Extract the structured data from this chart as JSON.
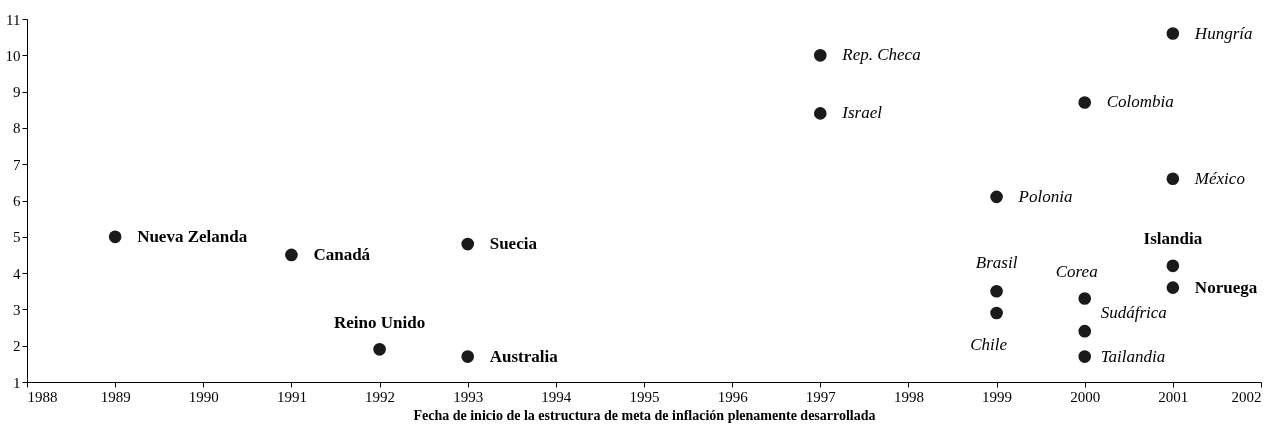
{
  "chart_data": {
    "type": "scatter",
    "xlabel": "Fecha de inicio de la estructura de meta de inflación plenamente desarrollada",
    "x": [
      1989,
      1991,
      1993,
      1992,
      1993,
      1997,
      1997,
      1999,
      1999,
      1999,
      2000,
      2000,
      2000,
      2000,
      2001,
      2001,
      2001,
      2001
    ],
    "values": [
      5.0,
      4.5,
      4.8,
      1.9,
      1.7,
      10.0,
      8.4,
      6.1,
      3.5,
      2.9,
      8.7,
      3.3,
      2.4,
      1.7,
      10.6,
      6.6,
      4.2,
      3.6
    ],
    "color": "#1a1a1a",
    "marker": "circle",
    "grid": false,
    "xlim": [
      1988,
      2002
    ],
    "xticks": [
      1988,
      1989,
      1990,
      1991,
      1992,
      1993,
      1994,
      1995,
      1996,
      1997,
      1998,
      1999,
      2000,
      2001,
      2002
    ],
    "ylim": [
      1,
      11
    ],
    "yticks": [
      1,
      2,
      3,
      4,
      5,
      6,
      7,
      8,
      9,
      10,
      11
    ],
    "annotations": [
      {
        "text": "Nueva Zelanda",
        "x": 1989,
        "y": 5.0
      },
      {
        "text": "Canadá",
        "x": 1991,
        "y": 4.5
      },
      {
        "text": "Suecia",
        "x": 1993,
        "y": 4.8
      },
      {
        "text": "Reino Unido",
        "x": 1992,
        "y": 1.9
      },
      {
        "text": "Australia",
        "x": 1993,
        "y": 1.7
      },
      {
        "text": "Rep. Checa",
        "x": 1997,
        "y": 10.0
      },
      {
        "text": "Israel",
        "x": 1997,
        "y": 8.4
      },
      {
        "text": "Polonia",
        "x": 1999,
        "y": 6.1
      },
      {
        "text": "Brasil",
        "x": 1999,
        "y": 3.5
      },
      {
        "text": "Chile",
        "x": 1999,
        "y": 2.9
      },
      {
        "text": "Colombia",
        "x": 2000,
        "y": 8.7
      },
      {
        "text": "Corea",
        "x": 2000,
        "y": 3.3
      },
      {
        "text": "Sudáfrica",
        "x": 2000,
        "y": 2.4
      },
      {
        "text": "Tailandia",
        "x": 2000,
        "y": 1.7
      },
      {
        "text": "Hungría",
        "x": 2001,
        "y": 10.6
      },
      {
        "text": "México",
        "x": 2001,
        "y": 6.6
      },
      {
        "text": "Islandia",
        "x": 2001,
        "y": 4.2
      },
      {
        "text": "Noruega",
        "x": 2001,
        "y": 3.6
      }
    ]
  }
}
